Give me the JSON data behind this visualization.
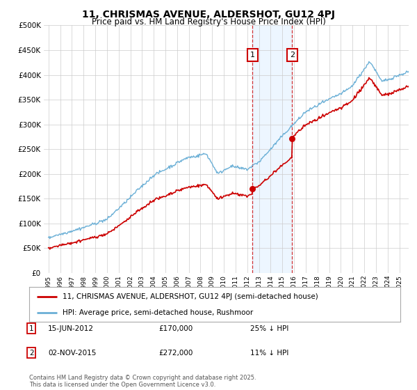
{
  "title": "11, CHRISMAS AVENUE, ALDERSHOT, GU12 4PJ",
  "subtitle": "Price paid vs. HM Land Registry's House Price Index (HPI)",
  "legend_line1": "11, CHRISMAS AVENUE, ALDERSHOT, GU12 4PJ (semi-detached house)",
  "legend_line2": "HPI: Average price, semi-detached house, Rushmoor",
  "annotation1_label": "1",
  "annotation1_date": "15-JUN-2012",
  "annotation1_price": "£170,000",
  "annotation1_hpi": "25% ↓ HPI",
  "annotation2_label": "2",
  "annotation2_date": "02-NOV-2015",
  "annotation2_price": "£272,000",
  "annotation2_hpi": "11% ↓ HPI",
  "footer": "Contains HM Land Registry data © Crown copyright and database right 2025.\nThis data is licensed under the Open Government Licence v3.0.",
  "hpi_color": "#6aafd6",
  "price_color": "#cc0000",
  "dashed_color": "#cc0000",
  "ylim": [
    0,
    500000
  ],
  "yticks": [
    0,
    50000,
    100000,
    150000,
    200000,
    250000,
    300000,
    350000,
    400000,
    450000,
    500000
  ],
  "transaction1_year": 2012.45,
  "transaction1_value": 170000,
  "transaction2_year": 2015.83,
  "transaction2_value": 272000,
  "shade_color": "#ddeeff",
  "shade_alpha": 0.5,
  "xlim_left": 1994.6,
  "xlim_right": 2025.8
}
